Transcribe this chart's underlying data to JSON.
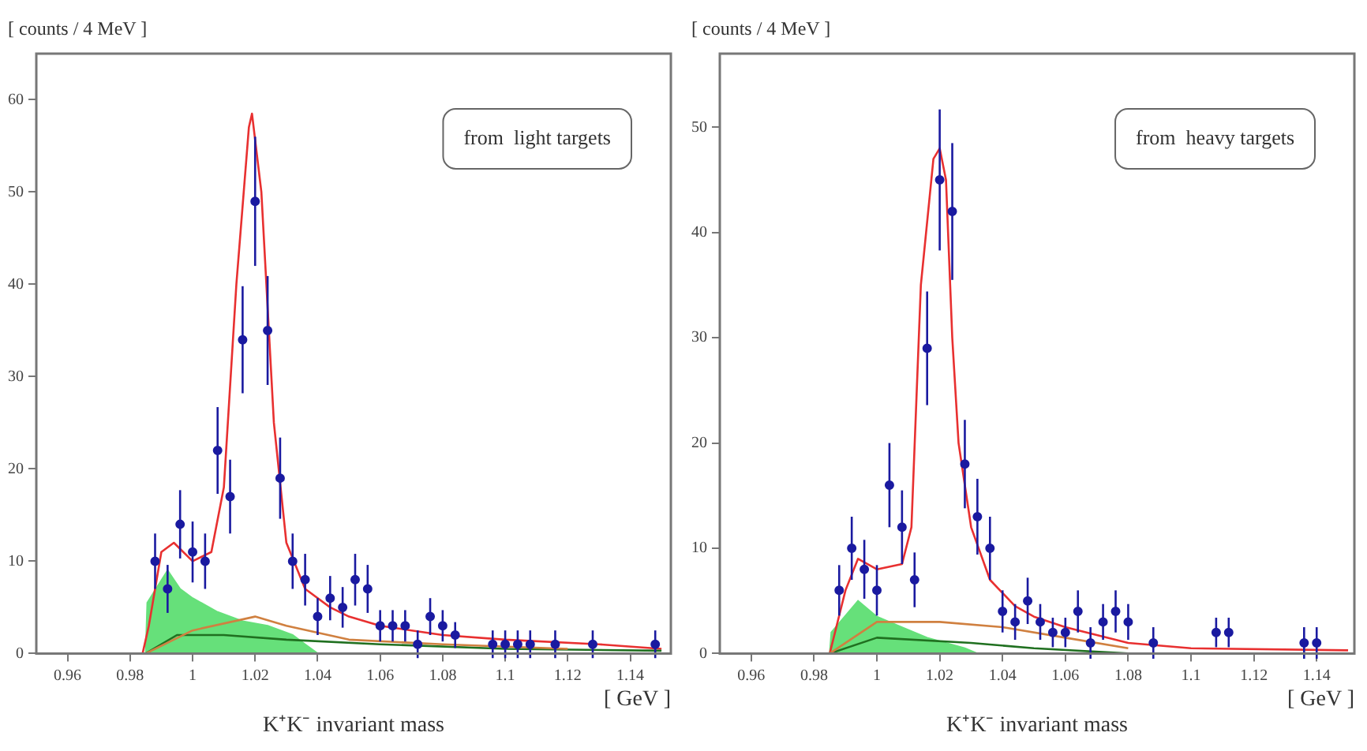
{
  "chart_data": [
    {
      "type": "scatter",
      "ylabel": "[ counts / 4 MeV ]",
      "xlabel": "K⁺K⁻ invariant mass",
      "annotations": [
        "from  light targets",
        "[ GeV ]"
      ],
      "xlim": [
        0.95,
        1.153
      ],
      "xticks": [
        0.96,
        0.98,
        1,
        1.02,
        1.04,
        1.06,
        1.08,
        1.1,
        1.12,
        1.14
      ],
      "ylim": [
        0,
        65
      ],
      "yticks": [
        0,
        10,
        20,
        30,
        40,
        50,
        60
      ],
      "grid": false,
      "legend": false,
      "series": [
        {
          "type": "area",
          "color": "#66e07a",
          "x": [
            0.985,
            0.9855,
            0.992,
            0.996,
            1.0,
            1.008,
            1.016,
            1.024,
            1.032,
            1.036,
            1.04
          ],
          "values": [
            0,
            5.5,
            9,
            7,
            6,
            4.5,
            3.5,
            3,
            2,
            1,
            0
          ]
        },
        {
          "type": "line",
          "color": "#d08040",
          "x": [
            0.985,
            1.0,
            1.02,
            1.03,
            1.05,
            1.08,
            1.12
          ],
          "values": [
            0,
            2.5,
            4,
            3,
            1.5,
            1,
            0.5
          ]
        },
        {
          "type": "line",
          "color": "#207020",
          "x": [
            0.985,
            0.995,
            1.01,
            1.03,
            1.06,
            1.1,
            1.15
          ],
          "values": [
            0,
            2,
            2,
            1.5,
            1,
            0.5,
            0.3
          ]
        },
        {
          "type": "line",
          "color": "#e83030",
          "x": [
            0.984,
            0.986,
            0.99,
            0.994,
            1.0,
            1.006,
            1.01,
            1.014,
            1.018,
            1.019,
            1.022,
            1.026,
            1.03,
            1.036,
            1.044,
            1.05,
            1.06,
            1.08,
            1.1,
            1.13,
            1.15
          ],
          "values": [
            0,
            3,
            11,
            12,
            10,
            11,
            18,
            40,
            57,
            58.5,
            50,
            25,
            12,
            7,
            5,
            4,
            3,
            2,
            1.5,
            1,
            0.5
          ]
        },
        {
          "type": "scatter",
          "color": "#1a1aa0",
          "x": [
            0.988,
            0.992,
            0.996,
            1.0,
            1.004,
            1.008,
            1.012,
            1.016,
            1.02,
            1.024,
            1.028,
            1.032,
            1.036,
            1.04,
            1.044,
            1.048,
            1.052,
            1.056,
            1.06,
            1.064,
            1.068,
            1.072,
            1.076,
            1.08,
            1.084,
            1.096,
            1.1,
            1.104,
            1.108,
            1.116,
            1.128,
            1.148
          ],
          "values": [
            10,
            7,
            14,
            11,
            10,
            22,
            17,
            34,
            49,
            35,
            19,
            10,
            8,
            4,
            6,
            5,
            8,
            7,
            3,
            3,
            3,
            1,
            4,
            3,
            2,
            1,
            1,
            1,
            1,
            1,
            1,
            1
          ],
          "errors": [
            3,
            2.6,
            3.7,
            3.3,
            3,
            4.7,
            4,
            5.8,
            7,
            5.9,
            4.4,
            3,
            2.8,
            2,
            2.4,
            2.2,
            2.8,
            2.6,
            1.7,
            1.7,
            1.7,
            1.5,
            2,
            1.7,
            1.4,
            1.5,
            1.5,
            1.5,
            1.5,
            1.5,
            1.5,
            1.5
          ],
          "marker": "circle"
        }
      ]
    },
    {
      "type": "scatter",
      "ylabel": "[ counts / 4 MeV ]",
      "xlabel": "K⁺K⁻ invariant mass",
      "annotations": [
        "from  heavy targets",
        "[ GeV ]"
      ],
      "xlim": [
        0.95,
        1.152
      ],
      "xticks": [
        0.96,
        0.98,
        1,
        1.02,
        1.04,
        1.06,
        1.08,
        1.1,
        1.12,
        1.14
      ],
      "ylim": [
        0,
        57
      ],
      "yticks": [
        0,
        10,
        20,
        30,
        40,
        50
      ],
      "grid": false,
      "legend": false,
      "series": [
        {
          "type": "area",
          "color": "#66e07a",
          "x": [
            0.985,
            0.9855,
            0.994,
            1.0,
            1.008,
            1.016,
            1.028,
            1.032
          ],
          "values": [
            0,
            2,
            5,
            3.5,
            2.5,
            1.5,
            0.5,
            0
          ]
        },
        {
          "type": "line",
          "color": "#d08040",
          "x": [
            0.985,
            1.0,
            1.02,
            1.04,
            1.06,
            1.08
          ],
          "values": [
            0,
            3,
            3,
            2.5,
            1.5,
            0.5
          ]
        },
        {
          "type": "line",
          "color": "#207020",
          "x": [
            0.985,
            1.0,
            1.03,
            1.05,
            1.08
          ],
          "values": [
            0,
            1.5,
            1,
            0.5,
            0
          ]
        },
        {
          "type": "line",
          "color": "#e83030",
          "x": [
            0.985,
            0.99,
            0.994,
            1.0,
            1.008,
            1.011,
            1.014,
            1.018,
            1.02,
            1.022,
            1.024,
            1.026,
            1.03,
            1.036,
            1.044,
            1.05,
            1.06,
            1.08,
            1.1,
            1.15
          ],
          "values": [
            0,
            6,
            9,
            8,
            8.5,
            12,
            35,
            47,
            48,
            45,
            30,
            20,
            12,
            7,
            4.5,
            3.5,
            2.5,
            1,
            0.5,
            0.3
          ]
        },
        {
          "type": "scatter",
          "color": "#1a1aa0",
          "x": [
            0.988,
            0.992,
            0.996,
            1.0,
            1.004,
            1.008,
            1.012,
            1.016,
            1.02,
            1.024,
            1.028,
            1.032,
            1.036,
            1.04,
            1.044,
            1.048,
            1.052,
            1.056,
            1.06,
            1.064,
            1.068,
            1.072,
            1.076,
            1.08,
            1.088,
            1.108,
            1.112,
            1.136,
            1.14
          ],
          "values": [
            6,
            10,
            8,
            6,
            16,
            12,
            7,
            29,
            45,
            42,
            18,
            13,
            10,
            4,
            3,
            5,
            3,
            2,
            2,
            4,
            1,
            3,
            4,
            3,
            1,
            2,
            2,
            1,
            1
          ],
          "errors": [
            2.4,
            3,
            2.8,
            2.4,
            4,
            3.5,
            2.6,
            5.4,
            6.7,
            6.5,
            4.2,
            3.6,
            3,
            2,
            1.7,
            2.2,
            1.7,
            1.4,
            1.4,
            2,
            1.5,
            1.7,
            2,
            1.7,
            1.5,
            1.4,
            1.4,
            1.5,
            1.5
          ],
          "marker": "circle"
        }
      ]
    }
  ]
}
